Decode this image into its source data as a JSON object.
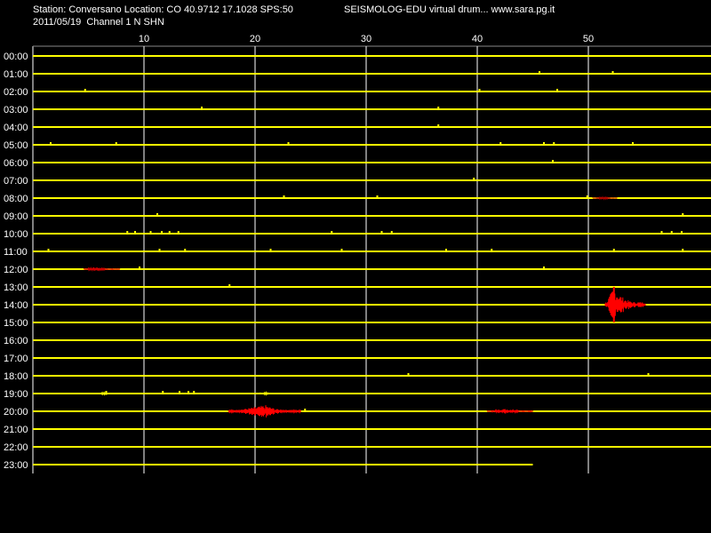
{
  "header": {
    "station_line": "Station: Conversano Location: CO 40.9712 17.1028 SPS:50",
    "date_line": "2011/05/19  Channel 1 N SHN",
    "brand": "SEISMOLOG-EDU virtual drum... www.sara.pg.it"
  },
  "colors": {
    "background": "#000000",
    "trace": "#ffff00",
    "event": "#ff0000",
    "event_dark": "#aa0000",
    "grid": "#ffffff"
  },
  "chart_data": {
    "type": "line",
    "title": "",
    "xlabel": "",
    "ylabel": "",
    "x_ticks": [
      10,
      20,
      30,
      40,
      50
    ],
    "xlim": [
      0,
      60
    ],
    "grid": true,
    "rows": [
      "00:00",
      "01:00",
      "02:00",
      "03:00",
      "04:00",
      "05:00",
      "06:00",
      "07:00",
      "08:00",
      "09:00",
      "10:00",
      "11:00",
      "12:00",
      "13:00",
      "14:00",
      "15:00",
      "16:00",
      "17:00",
      "18:00",
      "19:00",
      "20:00",
      "21:00",
      "22:00",
      "23:00"
    ],
    "record_end_minute": 45,
    "noise_marks": [
      {
        "row": 1,
        "minute": 45.6
      },
      {
        "row": 1,
        "minute": 52.2
      },
      {
        "row": 2,
        "minute": 4.7
      },
      {
        "row": 2,
        "minute": 40.2
      },
      {
        "row": 2,
        "minute": 47.2
      },
      {
        "row": 3,
        "minute": 15.2
      },
      {
        "row": 3,
        "minute": 36.5
      },
      {
        "row": 4,
        "minute": 36.5
      },
      {
        "row": 5,
        "minute": 1.6
      },
      {
        "row": 5,
        "minute": 7.5
      },
      {
        "row": 5,
        "minute": 23.0
      },
      {
        "row": 5,
        "minute": 42.1
      },
      {
        "row": 5,
        "minute": 46.0
      },
      {
        "row": 5,
        "minute": 46.9
      },
      {
        "row": 5,
        "minute": 54.0
      },
      {
        "row": 6,
        "minute": 46.8
      },
      {
        "row": 7,
        "minute": 39.7
      },
      {
        "row": 8,
        "minute": 22.6
      },
      {
        "row": 8,
        "minute": 31.0
      },
      {
        "row": 8,
        "minute": 49.9
      },
      {
        "row": 9,
        "minute": 11.2
      },
      {
        "row": 9,
        "minute": 58.5
      },
      {
        "row": 10,
        "minute": 8.5
      },
      {
        "row": 10,
        "minute": 9.2
      },
      {
        "row": 10,
        "minute": 10.6
      },
      {
        "row": 10,
        "minute": 11.6
      },
      {
        "row": 10,
        "minute": 12.3
      },
      {
        "row": 10,
        "minute": 13.1
      },
      {
        "row": 10,
        "minute": 26.9
      },
      {
        "row": 10,
        "minute": 31.4
      },
      {
        "row": 10,
        "minute": 32.3
      },
      {
        "row": 10,
        "minute": 56.6
      },
      {
        "row": 10,
        "minute": 57.5
      },
      {
        "row": 10,
        "minute": 58.4
      },
      {
        "row": 11,
        "minute": 1.4
      },
      {
        "row": 11,
        "minute": 11.4
      },
      {
        "row": 11,
        "minute": 13.7
      },
      {
        "row": 11,
        "minute": 21.4
      },
      {
        "row": 11,
        "minute": 27.8
      },
      {
        "row": 11,
        "minute": 37.2
      },
      {
        "row": 11,
        "minute": 41.3
      },
      {
        "row": 11,
        "minute": 52.3
      },
      {
        "row": 11,
        "minute": 58.5
      },
      {
        "row": 12,
        "minute": 9.6
      },
      {
        "row": 12,
        "minute": 46.0
      },
      {
        "row": 13,
        "minute": 17.7
      },
      {
        "row": 18,
        "minute": 33.8
      },
      {
        "row": 18,
        "minute": 55.4
      },
      {
        "row": 19,
        "minute": 6.6
      },
      {
        "row": 19,
        "minute": 11.7
      },
      {
        "row": 19,
        "minute": 13.2
      },
      {
        "row": 19,
        "minute": 14.0
      },
      {
        "row": 19,
        "minute": 14.5
      },
      {
        "row": 20,
        "minute": 24.5
      }
    ],
    "events": [
      {
        "row": 8,
        "start": 50.4,
        "peak": 51.5,
        "end": 52.6,
        "amplitude": 1.5,
        "color": "#aa0000"
      },
      {
        "row": 12,
        "start": 4.6,
        "peak": 5.6,
        "end": 7.8,
        "amplitude": 2.5,
        "color": "#cc0000"
      },
      {
        "row": 14,
        "start": 51.5,
        "peak": 52.3,
        "end": 55.1,
        "amplitude": 20,
        "color": "#ff0000"
      },
      {
        "row": 19,
        "start": 6.0,
        "peak": 6.5,
        "end": 7.0,
        "amplitude": 2,
        "color": "#ffff00"
      },
      {
        "row": 19,
        "start": 20.5,
        "peak": 21.0,
        "end": 21.4,
        "amplitude": 2,
        "color": "#ffff00"
      },
      {
        "row": 20,
        "start": 17.6,
        "peak": 21.0,
        "end": 24.1,
        "amplitude": 7,
        "color": "#ff0000"
      },
      {
        "row": 20,
        "start": 40.9,
        "peak": 42.6,
        "end": 45.0,
        "amplitude": 3,
        "color": "#ff0000"
      }
    ]
  }
}
